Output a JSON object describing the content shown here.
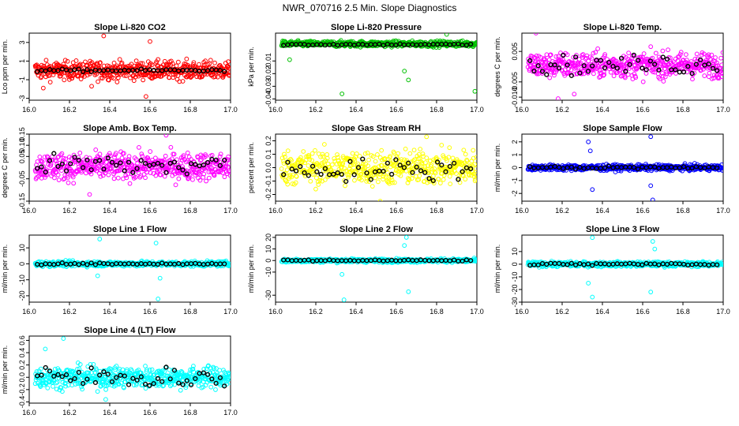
{
  "title": "NWR_070716  2.5 Min. Slope Diagnostics",
  "colors": {
    "red": "#ff0000",
    "green": "#00c000",
    "magenta": "#ff00ff",
    "yellow": "#ffff00",
    "blue": "#0000ff",
    "cyan": "#00ffff",
    "black": "#000000"
  },
  "chart_data": [
    {
      "type": "scatter",
      "title": "Slope Li-820 CO2",
      "ylabel": "Lco ppm per min.",
      "xlim": [
        16.0,
        17.0
      ],
      "ylim": [
        -3.2,
        4.0
      ],
      "xticks": [
        "16.0",
        "16.2",
        "16.4",
        "16.6",
        "16.8",
        "17.0"
      ],
      "yticks": [
        "-3",
        "-1",
        "1",
        "3"
      ],
      "color": "red",
      "band": [
        -1.5,
        1.5
      ],
      "n": 520,
      "spikes": [
        [
          16.37,
          3.7
        ],
        [
          16.6,
          3.1
        ],
        [
          16.58,
          -2.8
        ],
        [
          16.07,
          -1.9
        ],
        [
          16.31,
          -1.7
        ]
      ],
      "black_band": [
        -0.2,
        0.2
      ]
    },
    {
      "type": "scatter",
      "title": "Slope Li-820 Pressure",
      "ylabel": "kPa per min.",
      "xlim": [
        16.0,
        17.0
      ],
      "ylim": [
        -0.041,
        0.012
      ],
      "xticks": [
        "16.0",
        "16.2",
        "16.4",
        "16.6",
        "16.8",
        "17.0"
      ],
      "yticks": [
        "-0.04",
        "-0.03",
        "-0.02",
        "-0.01"
      ],
      "color": "green",
      "band": [
        0.0,
        0.007
      ],
      "n": 520,
      "spikes": [
        [
          16.33,
          -0.036
        ],
        [
          16.66,
          -0.025
        ],
        [
          16.85,
          0.011
        ],
        [
          16.64,
          -0.018
        ],
        [
          16.99,
          -0.034
        ],
        [
          16.07,
          -0.009
        ]
      ],
      "black_band": [
        0.002,
        0.004
      ]
    },
    {
      "type": "scatter",
      "title": "Slope Li-820 Temp.",
      "ylabel": "degrees C per min.",
      "xlim": [
        16.0,
        17.0
      ],
      "ylim": [
        -0.011,
        0.011
      ],
      "xticks": [
        "16.0",
        "16.2",
        "16.4",
        "16.6",
        "16.8",
        "17.0"
      ],
      "yticks": [
        "-0.010",
        "-0.005",
        "0.005"
      ],
      "color": "magenta",
      "band": [
        -0.006,
        0.007
      ],
      "n": 520,
      "spikes": [
        [
          16.07,
          0.011
        ],
        [
          16.18,
          -0.0105
        ],
        [
          16.26,
          -0.009
        ]
      ],
      "black_band": [
        -0.004,
        0.005
      ]
    },
    {
      "type": "scatter",
      "title": "Slope Amb. Box Temp.",
      "ylabel": "degrees C per min.",
      "xlim": [
        16.0,
        17.0
      ],
      "ylim": [
        -0.15,
        0.15
      ],
      "xticks": [
        "16.0",
        "16.2",
        "16.4",
        "16.6",
        "16.8",
        "17.0"
      ],
      "yticks": [
        "-0.15",
        "-0.05",
        "0.05",
        "0.10",
        "0.15"
      ],
      "color": "magenta",
      "band": [
        -0.09,
        0.1
      ],
      "n": 520,
      "spikes": [
        [
          16.68,
          0.145
        ],
        [
          16.3,
          -0.12
        ]
      ],
      "black_band": [
        -0.06,
        0.08
      ]
    },
    {
      "type": "scatter",
      "title": "Slope Gas Stream RH",
      "ylabel": "percent per min.",
      "xlim": [
        16.0,
        17.0
      ],
      "ylim": [
        -0.25,
        0.25
      ],
      "xticks": [
        "16.0",
        "16.2",
        "16.4",
        "16.6",
        "16.8",
        "17.0"
      ],
      "yticks": [
        "-0.2",
        "-0.1",
        "0.0",
        "0.1",
        "0.2"
      ],
      "color": "yellow",
      "band": [
        -0.2,
        0.2
      ],
      "n": 520,
      "spikes": [
        [
          16.52,
          -0.25
        ],
        [
          16.75,
          0.23
        ]
      ],
      "black_band": [
        -0.13,
        0.1
      ]
    },
    {
      "type": "scatter",
      "title": "Slope Sample Flow",
      "ylabel": "ml/min per min.",
      "xlim": [
        16.0,
        17.0
      ],
      "ylim": [
        -2.6,
        2.6
      ],
      "xticks": [
        "16.0",
        "16.2",
        "16.4",
        "16.6",
        "16.8",
        "17.0"
      ],
      "yticks": [
        "-2",
        "-1",
        "0",
        "1",
        "2"
      ],
      "color": "blue",
      "band": [
        -0.35,
        0.35
      ],
      "n": 520,
      "spikes": [
        [
          16.33,
          2.0
        ],
        [
          16.35,
          -1.7
        ],
        [
          16.64,
          2.4
        ],
        [
          16.65,
          -2.5
        ],
        [
          16.34,
          1.3
        ],
        [
          16.64,
          -1.4
        ]
      ],
      "black_band": [
        -0.15,
        0.15
      ]
    },
    {
      "type": "scatter",
      "title": "Slope Line 1 Flow",
      "ylabel": "ml/min per min.",
      "xlim": [
        16.0,
        17.0
      ],
      "ylim": [
        -24,
        18
      ],
      "xticks": [
        "16.0",
        "16.2",
        "16.4",
        "16.6",
        "16.8",
        "17.0"
      ],
      "yticks": [
        "-20",
        "-10",
        "0",
        "10"
      ],
      "color": "cyan",
      "band": [
        -2.5,
        2.5
      ],
      "n": 520,
      "spikes": [
        [
          16.35,
          15.5
        ],
        [
          16.63,
          13
        ],
        [
          16.64,
          -22
        ],
        [
          16.34,
          -7.5
        ],
        [
          16.65,
          -9
        ]
      ],
      "black_band": [
        -0.8,
        0.8
      ]
    },
    {
      "type": "scatter",
      "title": "Slope Line 2 Flow",
      "ylabel": "ml/min per min.",
      "xlim": [
        16.0,
        17.0
      ],
      "ylim": [
        -36,
        22
      ],
      "xticks": [
        "16.0",
        "16.2",
        "16.4",
        "16.6",
        "16.8",
        "17.0"
      ],
      "yticks": [
        "-30",
        "-10",
        "0",
        "10",
        "20"
      ],
      "color": "cyan",
      "band": [
        -2.5,
        2.5
      ],
      "n": 520,
      "spikes": [
        [
          16.34,
          -34
        ],
        [
          16.33,
          -12
        ],
        [
          16.66,
          -27
        ],
        [
          16.65,
          20
        ],
        [
          16.64,
          13
        ]
      ],
      "black_band": [
        -1,
        1
      ]
    },
    {
      "type": "scatter",
      "title": "Slope Line 3 Flow",
      "ylabel": "ml/min per min.",
      "xlim": [
        16.0,
        17.0
      ],
      "ylim": [
        -30,
        23
      ],
      "xticks": [
        "16.0",
        "16.2",
        "16.4",
        "16.6",
        "16.8",
        "17.0"
      ],
      "yticks": [
        "-30",
        "-20",
        "-10",
        "0",
        "10"
      ],
      "color": "cyan",
      "band": [
        -3,
        3
      ],
      "n": 520,
      "spikes": [
        [
          16.35,
          21
        ],
        [
          16.35,
          -26
        ],
        [
          16.65,
          18
        ],
        [
          16.64,
          -22
        ],
        [
          16.33,
          -15
        ],
        [
          16.66,
          12
        ]
      ],
      "black_band": [
        -1.5,
        1.5
      ]
    },
    {
      "type": "scatter",
      "title": "Slope Line 4 (LT) Flow",
      "ylabel": "ml/min per min.",
      "xlim": [
        16.0,
        17.0
      ],
      "ylim": [
        -0.42,
        0.67
      ],
      "xticks": [
        "16.0",
        "16.2",
        "16.4",
        "16.6",
        "16.8",
        "17.0"
      ],
      "yticks": [
        "-0.4",
        "-0.2",
        "0.0",
        "0.2",
        "0.4",
        "0.6"
      ],
      "color": "cyan",
      "band": [
        -0.27,
        0.27
      ],
      "n": 520,
      "spikes": [
        [
          16.17,
          0.63
        ],
        [
          16.08,
          0.46
        ],
        [
          16.38,
          -0.36
        ]
      ],
      "black_band": [
        -0.25,
        0.25
      ]
    }
  ]
}
